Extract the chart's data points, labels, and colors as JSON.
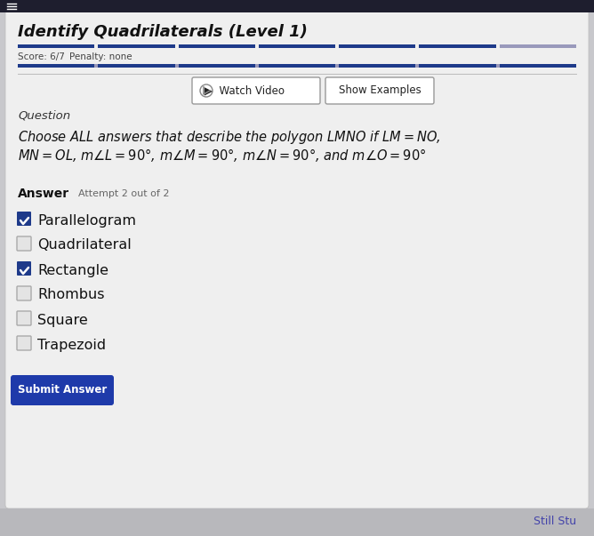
{
  "title": "Identify Quadrilaterals (Level 1)",
  "score_text": "Score: 6/7",
  "penalty_text": "Penalty: none",
  "watch_video_text": "▶  Watch Video",
  "show_examples_text": "Show Examples",
  "question_label": "Question",
  "answer_label": "Answer",
  "attempt_text": "Attempt 2 out of 2",
  "choices": [
    {
      "label": "Parallelogram",
      "checked": true
    },
    {
      "label": "Quadrilateral",
      "checked": false
    },
    {
      "label": "Rectangle",
      "checked": true
    },
    {
      "label": "Rhombus",
      "checked": false
    },
    {
      "label": "Square",
      "checked": false
    },
    {
      "label": "Trapezoid",
      "checked": false
    }
  ],
  "submit_button_text": "Submit Answer",
  "footer_text": "Still Stu",
  "bg_color": "#c8c8cc",
  "card_color": "#efefef",
  "top_strip_color": "#1e1e2e",
  "progress_bar_color": "#1e3a8a",
  "progress_bar_bg": "#9999bb",
  "checkbox_checked_color": "#1e3a8a",
  "submit_btn_color": "#1e3aaa",
  "submit_btn_text_color": "#ffffff",
  "title_color": "#111111",
  "question_text_color": "#111111",
  "answer_label_color": "#111111",
  "score_color": "#444444",
  "footer_text_color": "#4444aa",
  "watch_video_circle_color": "#888888",
  "progress_segments": 7,
  "progress_filled": 6
}
